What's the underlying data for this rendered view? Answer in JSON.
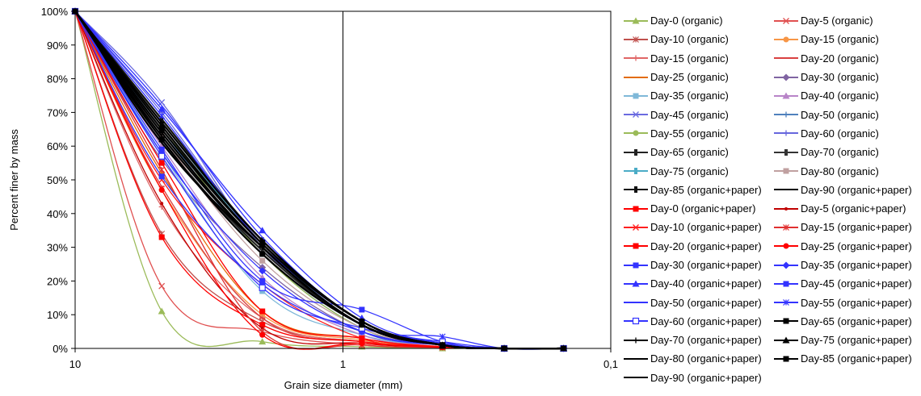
{
  "chart_data": {
    "type": "line",
    "xlabel": "Grain size diameter (mm)",
    "ylabel": "Percent finer by mass",
    "x_scale": "log",
    "x_reversed": true,
    "xlim": [
      10,
      0.1
    ],
    "ylim": [
      0,
      100
    ],
    "x_tick_labels": [
      "10",
      "1",
      "0,1"
    ],
    "y_tick_labels": [
      "0%",
      "10%",
      "20%",
      "30%",
      "40%",
      "50%",
      "60%",
      "70%",
      "80%",
      "90%",
      "100%"
    ],
    "x": [
      10,
      4.75,
      2,
      0.85,
      0.425,
      0.25,
      0.15
    ],
    "series": [
      {
        "name": "Day-0 (organic)",
        "color": "#9bbb59",
        "marker": "triangle",
        "values": [
          100,
          11,
          2,
          0.5,
          0,
          0,
          0
        ]
      },
      {
        "name": "Day-5 (organic)",
        "color": "#e05050",
        "marker": "x",
        "values": [
          100,
          18.5,
          5,
          1,
          0.3,
          0,
          0
        ]
      },
      {
        "name": "Day-10 (organic)",
        "color": "#c0504d",
        "marker": "star",
        "values": [
          100,
          34,
          8,
          2,
          0.5,
          0,
          0
        ]
      },
      {
        "name": "Day-15 (organic)",
        "color": "#f79646",
        "marker": "circle",
        "values": [
          100,
          47,
          10,
          2.5,
          0.5,
          0,
          0
        ]
      },
      {
        "name": "Day-15 (organic)",
        "color": "#e06666",
        "marker": "plus",
        "values": [
          100,
          42,
          9,
          2,
          0.5,
          0,
          0
        ]
      },
      {
        "name": "Day-20 (organic)",
        "color": "#d94040",
        "marker": "dash",
        "values": [
          100,
          48,
          9,
          2,
          0.5,
          0,
          0
        ]
      },
      {
        "name": "Day-25 (organic)",
        "color": "#e36c09",
        "marker": "dash",
        "values": [
          100,
          52,
          11,
          3,
          0.5,
          0,
          0
        ]
      },
      {
        "name": "Day-30 (organic)",
        "color": "#8064a2",
        "marker": "diamond",
        "values": [
          100,
          56,
          24,
          5,
          1,
          0,
          0
        ]
      },
      {
        "name": "Day-35 (organic)",
        "color": "#7fb8d8",
        "marker": "square",
        "values": [
          100,
          58,
          17,
          4,
          1,
          0,
          0
        ]
      },
      {
        "name": "Day-40 (organic)",
        "color": "#b884c8",
        "marker": "triangle",
        "values": [
          100,
          60,
          21,
          4,
          1,
          0,
          0
        ]
      },
      {
        "name": "Day-45 (organic)",
        "color": "#6a6ae0",
        "marker": "x",
        "values": [
          100,
          73,
          30,
          7,
          1.5,
          0,
          0
        ]
      },
      {
        "name": "Day-50 (organic)",
        "color": "#4f81bd",
        "marker": "plus",
        "values": [
          100,
          65,
          28,
          6,
          1,
          0,
          0
        ]
      },
      {
        "name": "Day-55 (organic)",
        "color": "#9bbb59",
        "marker": "circle",
        "values": [
          100,
          66,
          28,
          6,
          1,
          0,
          0
        ]
      },
      {
        "name": "Day-60 (organic)",
        "color": "#6666dd",
        "marker": "plus",
        "values": [
          100,
          70,
          31,
          8,
          1.5,
          0,
          0
        ]
      },
      {
        "name": "Day-65 (organic)",
        "color": "#222222",
        "marker": "dashdot",
        "values": [
          100,
          62,
          29,
          7,
          1,
          0,
          0
        ]
      },
      {
        "name": "Day-70 (organic)",
        "color": "#333333",
        "marker": "dashdot",
        "values": [
          100,
          64,
          30,
          7,
          1,
          0,
          0
        ]
      },
      {
        "name": "Day-75 (organic)",
        "color": "#4bacc6",
        "marker": "dashdot",
        "values": [
          100,
          67,
          31,
          7,
          1,
          0,
          0
        ]
      },
      {
        "name": "Day-80 (organic)",
        "color": "#c0a0a0",
        "marker": "square",
        "values": [
          100,
          63,
          26,
          6,
          1,
          0,
          0
        ]
      },
      {
        "name": "Day-85 (organic+paper)",
        "color": "#111111",
        "marker": "dashdot",
        "values": [
          100,
          68,
          32,
          8,
          1,
          0,
          0
        ]
      },
      {
        "name": "Day-90 (organic+paper)",
        "color": "#000000",
        "marker": "none",
        "values": [
          100,
          61,
          30,
          7,
          1,
          0,
          0
        ]
      },
      {
        "name": "Day-0 (organic+paper)",
        "color": "#ff0000",
        "marker": "square",
        "values": [
          100,
          33,
          7,
          2,
          0.5,
          0,
          0
        ]
      },
      {
        "name": "Day-5 (organic+paper)",
        "color": "#c00000",
        "marker": "dot",
        "values": [
          100,
          43,
          6,
          1.5,
          0.3,
          0,
          0
        ]
      },
      {
        "name": "Day-10 (organic+paper)",
        "color": "#ff2020",
        "marker": "x",
        "values": [
          100,
          50,
          19,
          3,
          0.5,
          0,
          0
        ]
      },
      {
        "name": "Day-15 (organic+paper)",
        "color": "#e03030",
        "marker": "star",
        "values": [
          100,
          53,
          5,
          1,
          0.3,
          0,
          0
        ]
      },
      {
        "name": "Day-20 (organic+paper)",
        "color": "#ff0000",
        "marker": "square",
        "values": [
          100,
          55,
          11,
          3,
          0.5,
          0,
          0
        ]
      },
      {
        "name": "Day-25 (organic+paper)",
        "color": "#ff0000",
        "marker": "circle",
        "values": [
          100,
          47,
          4,
          1.5,
          0.3,
          0,
          0
        ]
      },
      {
        "name": "Day-30 (organic+paper)",
        "color": "#3333ff",
        "marker": "square",
        "values": [
          100,
          51,
          19,
          5,
          1,
          0,
          0
        ]
      },
      {
        "name": "Day-35 (organic+paper)",
        "color": "#3333ff",
        "marker": "diamond",
        "values": [
          100,
          58,
          23,
          5,
          1,
          0,
          0
        ]
      },
      {
        "name": "Day-40 (organic+paper)",
        "color": "#3333ff",
        "marker": "triangle",
        "values": [
          100,
          71,
          35,
          9,
          1.5,
          0,
          0
        ]
      },
      {
        "name": "Day-45 (organic+paper)",
        "color": "#3333ff",
        "marker": "square",
        "values": [
          100,
          59,
          20,
          11.5,
          2,
          0,
          0
        ]
      },
      {
        "name": "Day-50 (organic+paper)",
        "color": "#3333ff",
        "marker": "none",
        "values": [
          100,
          72,
          33,
          8,
          1.5,
          0,
          0
        ]
      },
      {
        "name": "Day-55 (organic+paper)",
        "color": "#3333ff",
        "marker": "star",
        "values": [
          100,
          69,
          31,
          7,
          3.5,
          0,
          0
        ]
      },
      {
        "name": "Day-60 (organic+paper)",
        "color": "#3333ff",
        "marker": "square-open",
        "values": [
          100,
          57,
          18,
          6,
          2,
          0,
          0
        ]
      },
      {
        "name": "Day-65 (organic+paper)",
        "color": "#000000",
        "marker": "square",
        "values": [
          100,
          62,
          28,
          7,
          1,
          0,
          0
        ]
      },
      {
        "name": "Day-70 (organic+paper)",
        "color": "#000000",
        "marker": "plus",
        "values": [
          100,
          64,
          30,
          7,
          1,
          0,
          0
        ]
      },
      {
        "name": "Day-75 (organic+paper)",
        "color": "#000000",
        "marker": "triangle",
        "values": [
          100,
          66,
          31,
          8,
          1,
          0,
          0
        ]
      },
      {
        "name": "Day-80 (organic+paper)",
        "color": "#000000",
        "marker": "dash",
        "values": [
          100,
          67,
          32,
          8,
          1,
          0,
          0
        ]
      },
      {
        "name": "Day-85 (organic+paper)",
        "color": "#000000",
        "marker": "square",
        "values": [
          100,
          65,
          31,
          8,
          1,
          0,
          0
        ]
      },
      {
        "name": "Day-90 (organic+paper)",
        "color": "#000000",
        "marker": "none",
        "values": [
          100,
          63,
          30,
          7,
          1,
          0,
          0
        ]
      }
    ],
    "legend_position": "right",
    "grid": false
  }
}
